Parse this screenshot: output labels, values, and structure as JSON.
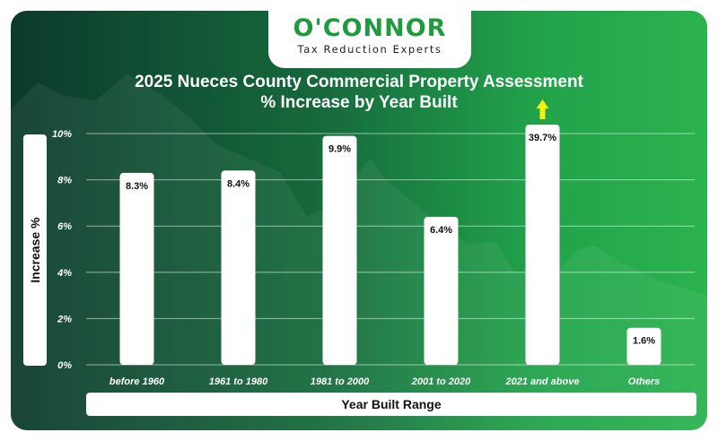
{
  "logo": {
    "name": "O'CONNOR",
    "tagline": "Tax Reduction Experts"
  },
  "colors": {
    "accent_green": "#1f9a3f",
    "arrow_yellow": "#f6f10a",
    "bar": "#ffffff"
  },
  "chart_data": {
    "type": "bar",
    "title": "2025 Nueces County Commercial Property Assessment",
    "subtitle": "% Increase by Year Built",
    "xlabel": "Year Built Range",
    "ylabel": "Increase %",
    "categories": [
      "before 1960",
      "1961 to 1980",
      "1981 to 2000",
      "2001 to 2020",
      "2021 and above",
      "Others"
    ],
    "values": [
      8.3,
      8.4,
      9.9,
      6.4,
      39.7,
      1.6
    ],
    "data_labels": [
      "8.3%",
      "8.4%",
      "9.9%",
      "6.4%",
      "39.7%",
      "1.6%"
    ],
    "yticks": [
      "0%",
      "2%",
      "4%",
      "6%",
      "8%",
      "10%"
    ],
    "ytick_values": [
      0,
      2,
      4,
      6,
      8,
      10
    ],
    "ylim": [
      0,
      10
    ],
    "clipped_indicator": {
      "category": "2021 and above",
      "icon": "up-arrow-icon"
    },
    "grid": true,
    "legend": "none"
  }
}
